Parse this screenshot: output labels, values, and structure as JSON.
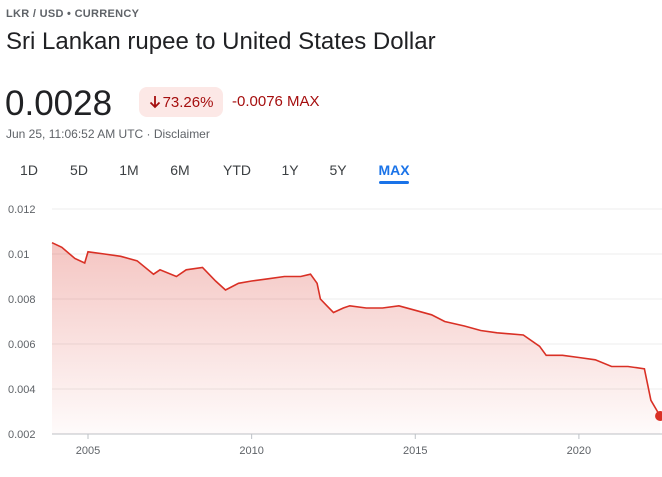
{
  "header": {
    "breadcrumb": "LKR / USD • CURRENCY",
    "title": "Sri Lankan rupee to United States Dollar"
  },
  "quote": {
    "price": "0.0028",
    "change_percent": "73.26%",
    "change": "-0.0076 MAX",
    "timestamp": "Jun 25, 11:06:52 AM UTC · Disclaimer"
  },
  "tabs": {
    "items": [
      "1D",
      "5D",
      "1M",
      "6M",
      "YTD",
      "1Y",
      "5Y",
      "MAX"
    ],
    "selected": "MAX"
  },
  "chart_data": {
    "type": "line",
    "color": "#d93025",
    "x": [
      2003.9,
      2004.2,
      2004.6,
      2004.9,
      2005.0,
      2005.5,
      2006.0,
      2006.5,
      2007.0,
      2007.2,
      2007.7,
      2008.0,
      2008.5,
      2008.9,
      2009.2,
      2009.6,
      2010.0,
      2010.5,
      2011.0,
      2011.5,
      2011.8,
      2012.0,
      2012.1,
      2012.3,
      2012.5,
      2012.8,
      2013.0,
      2013.5,
      2014.0,
      2014.5,
      2015.0,
      2015.5,
      2015.9,
      2016.5,
      2017.0,
      2017.5,
      2018.3,
      2018.8,
      2019.0,
      2019.5,
      2020.0,
      2020.5,
      2021.0,
      2021.5,
      2022.0,
      2022.2,
      2022.48
    ],
    "values": [
      0.0105,
      0.0103,
      0.0098,
      0.0096,
      0.0101,
      0.01,
      0.0099,
      0.0097,
      0.0091,
      0.0093,
      0.009,
      0.0093,
      0.0094,
      0.0088,
      0.0084,
      0.0087,
      0.0088,
      0.0089,
      0.009,
      0.009,
      0.0091,
      0.0087,
      0.008,
      0.0077,
      0.0074,
      0.0076,
      0.0077,
      0.0076,
      0.0076,
      0.0077,
      0.0075,
      0.0073,
      0.007,
      0.0068,
      0.0066,
      0.0065,
      0.0064,
      0.0059,
      0.0055,
      0.0055,
      0.0054,
      0.0053,
      0.005,
      0.005,
      0.0049,
      0.0035,
      0.0028
    ],
    "xlim": [
      2003.9,
      2022.6
    ],
    "xticks": [
      2005,
      2010,
      2015,
      2020
    ],
    "ylim": [
      0.002,
      0.012
    ],
    "yticks": [
      0.002,
      0.004,
      0.006,
      0.008,
      0.01,
      0.012
    ],
    "grid": true
  }
}
